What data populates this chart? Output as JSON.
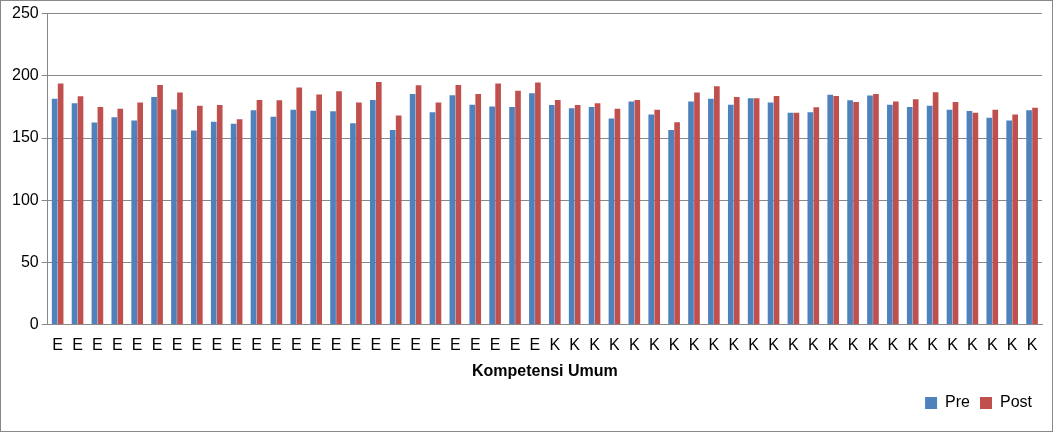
{
  "chart_data": {
    "type": "bar",
    "xlabel": "Kompetensi Umum",
    "categories": [
      "E",
      "E",
      "E",
      "E",
      "E",
      "E",
      "E",
      "E",
      "E",
      "E",
      "E",
      "E",
      "E",
      "E",
      "E",
      "E",
      "E",
      "E",
      "E",
      "E",
      "E",
      "E",
      "E",
      "E",
      "E",
      "K",
      "K",
      "K",
      "K",
      "K",
      "K",
      "K",
      "K",
      "K",
      "K",
      "K",
      "K",
      "K",
      "K",
      "K",
      "K",
      "K",
      "K",
      "K",
      "K",
      "K",
      "K",
      "K",
      "K",
      "K"
    ],
    "series": [
      {
        "name": "Pre",
        "color": "#4f81bd",
        "values": [
          181.5,
          178,
          162.4,
          166.7,
          164,
          183,
          173,
          156,
          163,
          161.5,
          172.3,
          167,
          172.7,
          172,
          171.5,
          161.8,
          180.6,
          156.5,
          185.3,
          170.6,
          184.4,
          176.8,
          175.3,
          175,
          186,
          176.5,
          174,
          175,
          165.6,
          179.4,
          168.9,
          156.5,
          179.4,
          181.5,
          176.8,
          182,
          178.5,
          170.3,
          170.6,
          184.7,
          180.3,
          184.1,
          176.8,
          175,
          176,
          172.7,
          171.8,
          166.2,
          164,
          172.3
        ]
      },
      {
        "name": "Post",
        "color": "#c0504d",
        "values": [
          193.8,
          183.5,
          175,
          173.5,
          178.5,
          192.6,
          186.5,
          176,
          176.5,
          165,
          180.6,
          180.3,
          190.6,
          185,
          187.6,
          178.5,
          195,
          168,
          192.4,
          178.5,
          192.6,
          185.3,
          193.8,
          188,
          194.7,
          180.6,
          176.5,
          178,
          173.5,
          180.6,
          172.7,
          162.7,
          186.5,
          191.5,
          183,
          182,
          183.8,
          170.3,
          174.7,
          183.8,
          179,
          185.3,
          179.4,
          181.2,
          186.8,
          179,
          170.3,
          172.7,
          168.9,
          174.4
        ]
      }
    ],
    "ylim": [
      0,
      250
    ],
    "yticks": [
      0,
      50,
      100,
      150,
      200,
      250
    ],
    "grid": "y",
    "legend": "bottom right"
  }
}
